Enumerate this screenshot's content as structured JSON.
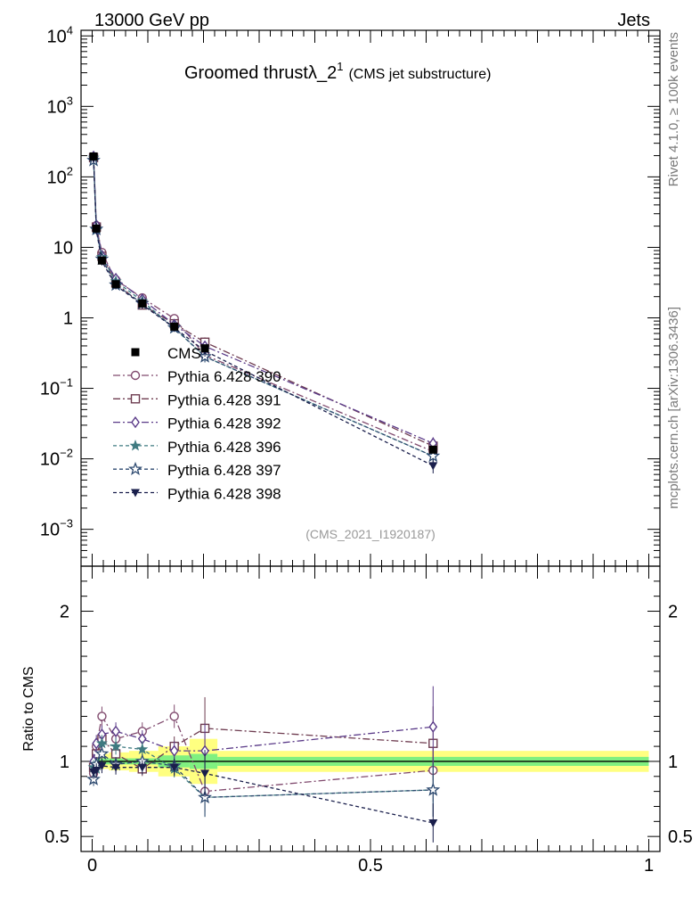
{
  "header": {
    "left": "13000 GeV pp",
    "right": "Jets"
  },
  "side_texts": {
    "rivet": "Rivet 4.1.0, ≥ 100k events",
    "mcplots": "mcplots.cern.ch [arXiv:1306.3436]"
  },
  "chart_data": {
    "type": "line",
    "title_main": "Groomed thrustλ_2",
    "title_sup": "1",
    "title_sub": "(CMS jet substructure)",
    "analysis_id": "(CMS_2021_I1920187)",
    "x": [
      0.0025,
      0.0075,
      0.0175,
      0.0425,
      0.09,
      0.1475,
      0.2025,
      0.6125
    ],
    "xlim": [
      -0.02,
      1.02
    ],
    "top_panel": {
      "yscale": "log",
      "ylim": [
        0.0003,
        12000
      ],
      "ytick_values": [
        0.001,
        0.01,
        0.1,
        1,
        10,
        100,
        1000,
        10000
      ],
      "ytick_labels": [
        {
          "base": "10",
          "sup": "−3"
        },
        {
          "base": "10",
          "sup": "−2"
        },
        {
          "base": "10",
          "sup": "−1"
        },
        {
          "base": "1",
          "sup": ""
        },
        {
          "base": "10",
          "sup": ""
        },
        {
          "base": "10",
          "sup": "2"
        },
        {
          "base": "10",
          "sup": "3"
        },
        {
          "base": "10",
          "sup": "4"
        }
      ],
      "data": {
        "name": "CMS",
        "values": [
          195,
          18.5,
          6.5,
          3.0,
          1.6,
          0.75,
          0.37,
          0.0135
        ]
      }
    },
    "ratio_panel": {
      "ylabel": "Ratio to CMS",
      "ylim": [
        0.4,
        2.3
      ],
      "ytick_values": [
        0.5,
        1,
        2
      ],
      "ytick_labels": [
        "0.5",
        "1",
        "2"
      ],
      "band_inner": [
        0.03,
        0.02,
        0.02,
        0.02,
        0.02,
        0.04,
        0.05,
        0.03
      ],
      "band_outer": [
        0.06,
        0.05,
        0.05,
        0.06,
        0.07,
        0.1,
        0.15,
        0.07
      ]
    },
    "xtick_labels": [
      {
        "value": 0,
        "label": "0"
      },
      {
        "value": 0.5,
        "label": "0.5"
      },
      {
        "value": 1,
        "label": "1"
      }
    ],
    "series": [
      {
        "name": "Pythia 6.428 390",
        "color": "#804a6e",
        "marker": "circle-open",
        "dash": "8,3,2,3",
        "ratio": [
          0.92,
          1.1,
          1.3,
          1.15,
          1.2,
          1.3,
          0.8,
          0.94
        ]
      },
      {
        "name": "Pythia 6.428 391",
        "color": "#6e3c50",
        "marker": "square-open",
        "dash": "8,3,2,3",
        "ratio": [
          0.96,
          1.05,
          1.15,
          1.05,
          0.95,
          1.1,
          1.22,
          1.12
        ]
      },
      {
        "name": "Pythia 6.428 392",
        "color": "#5a3a88",
        "marker": "diamond-open",
        "dash": "8,3,2,3",
        "ratio": [
          1.0,
          1.12,
          1.18,
          1.2,
          1.15,
          1.07,
          1.07,
          1.23
        ]
      },
      {
        "name": "Pythia 6.428 396",
        "color": "#3f7a80",
        "marker": "star-filled",
        "dash": "4,3",
        "ratio": [
          0.96,
          0.95,
          1.12,
          1.1,
          1.08,
          0.95,
          0.76,
          0.81
        ]
      },
      {
        "name": "Pythia 6.428 397",
        "color": "#2e4a70",
        "marker": "star-open",
        "dash": "4,3",
        "ratio": [
          0.88,
          0.98,
          1.05,
          0.98,
          1.0,
          0.97,
          0.76,
          0.81
        ]
      },
      {
        "name": "Pythia 6.428 398",
        "color": "#1a1f4c",
        "marker": "triangle-down-filled",
        "dash": "4,3",
        "ratio": [
          0.93,
          0.94,
          0.97,
          0.96,
          0.96,
          0.96,
          0.92,
          0.59
        ]
      }
    ]
  }
}
